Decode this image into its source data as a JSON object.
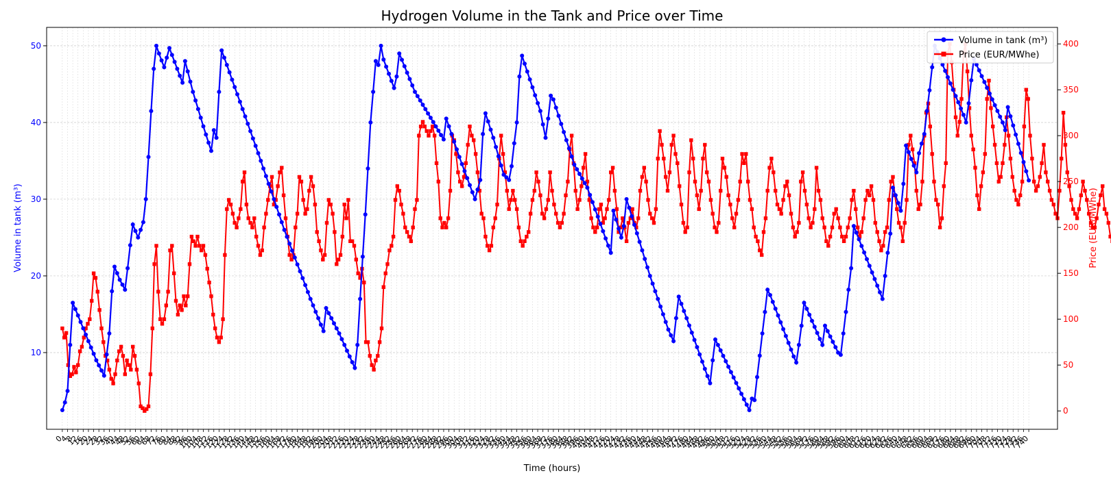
{
  "chart_data": {
    "type": "line",
    "title": "Hydrogen Volume in the Tank and Price over Time",
    "xlabel": "Time (hours)",
    "ylabel_left": "Volume in tank (m³)",
    "ylabel_right": "Price (EUR/MWhe)",
    "x_tick_step": 4,
    "xlim": [
      -12,
      762
    ],
    "ylim_left": [
      0.0,
      52.4
    ],
    "ylim_right": [
      -20,
      418
    ],
    "yticks_left": [
      10,
      20,
      30,
      40,
      50
    ],
    "yticks_right": [
      0,
      50,
      100,
      150,
      200,
      250,
      300,
      350,
      400
    ],
    "grid": true,
    "legend_position": "top-right",
    "series": [
      {
        "name": "Volume in tank (m³)",
        "axis": "left",
        "color": "#0000ff",
        "marker": "circle",
        "points": [
          [
            0,
            2.5
          ],
          [
            2,
            3.5
          ],
          [
            4,
            5
          ],
          [
            6,
            11
          ],
          [
            8,
            16.5
          ],
          [
            14,
            14
          ],
          [
            20,
            11.5
          ],
          [
            26,
            9
          ],
          [
            32,
            7
          ],
          [
            36,
            12.5
          ],
          [
            38,
            18
          ],
          [
            40,
            21.2
          ],
          [
            44,
            19.5
          ],
          [
            48,
            18.2
          ],
          [
            50,
            21
          ],
          [
            52,
            24
          ],
          [
            54,
            26.7
          ],
          [
            58,
            25
          ],
          [
            62,
            27
          ],
          [
            64,
            30
          ],
          [
            66,
            35.5
          ],
          [
            68,
            41.5
          ],
          [
            70,
            47
          ],
          [
            72,
            50
          ],
          [
            74,
            49
          ],
          [
            78,
            47.2
          ],
          [
            82,
            49.7
          ],
          [
            88,
            47
          ],
          [
            92,
            45.2
          ],
          [
            94,
            48
          ],
          [
            100,
            44
          ],
          [
            108,
            39.5
          ],
          [
            114,
            36.3
          ],
          [
            116,
            39
          ],
          [
            118,
            38
          ],
          [
            120,
            44
          ],
          [
            122,
            49.4
          ],
          [
            126,
            47.5
          ],
          [
            150,
            36
          ],
          [
            170,
            26
          ],
          [
            190,
            17
          ],
          [
            200,
            12.8
          ],
          [
            202,
            15.8
          ],
          [
            212,
            12.5
          ],
          [
            224,
            8
          ],
          [
            226,
            11
          ],
          [
            228,
            17
          ],
          [
            230,
            22.5
          ],
          [
            232,
            28
          ],
          [
            234,
            34
          ],
          [
            236,
            40
          ],
          [
            238,
            44
          ],
          [
            240,
            48
          ],
          [
            242,
            47.5
          ],
          [
            244,
            50
          ],
          [
            246,
            48.2
          ],
          [
            254,
            44.5
          ],
          [
            256,
            46
          ],
          [
            258,
            49
          ],
          [
            270,
            44
          ],
          [
            292,
            37.8
          ],
          [
            294,
            40.5
          ],
          [
            304,
            35.5
          ],
          [
            316,
            30
          ],
          [
            320,
            32.5
          ],
          [
            322,
            38.5
          ],
          [
            324,
            41.2
          ],
          [
            330,
            38
          ],
          [
            338,
            33.2
          ],
          [
            342,
            32.5
          ],
          [
            344,
            34.3
          ],
          [
            346,
            37.3
          ],
          [
            348,
            40
          ],
          [
            350,
            46
          ],
          [
            352,
            48.7
          ],
          [
            366,
            41.5
          ],
          [
            370,
            38
          ],
          [
            372,
            40.5
          ],
          [
            374,
            43.5
          ],
          [
            376,
            43
          ],
          [
            392,
            34.5
          ],
          [
            402,
            31.5
          ],
          [
            420,
            23
          ],
          [
            422,
            28.5
          ],
          [
            428,
            25
          ],
          [
            430,
            26.5
          ],
          [
            432,
            30
          ],
          [
            450,
            20
          ],
          [
            464,
            13
          ],
          [
            468,
            11.5
          ],
          [
            470,
            14.5
          ],
          [
            472,
            17.3
          ],
          [
            496,
            6
          ],
          [
            498,
            9
          ],
          [
            500,
            11.7
          ],
          [
            526,
            2.5
          ],
          [
            528,
            4
          ],
          [
            530,
            3.8
          ],
          [
            532,
            6.8
          ],
          [
            534,
            9.6
          ],
          [
            536,
            12.5
          ],
          [
            538,
            15.3
          ],
          [
            540,
            18.2
          ],
          [
            542,
            17.5
          ],
          [
            560,
            9.5
          ],
          [
            562,
            8.7
          ],
          [
            564,
            11
          ],
          [
            566,
            13.5
          ],
          [
            568,
            16.5
          ],
          [
            582,
            11
          ],
          [
            584,
            13.5
          ],
          [
            594,
            10
          ],
          [
            596,
            9.7
          ],
          [
            598,
            12.5
          ],
          [
            600,
            15.3
          ],
          [
            602,
            18.2
          ],
          [
            604,
            21
          ],
          [
            606,
            26.5
          ],
          [
            628,
            17
          ],
          [
            630,
            20
          ],
          [
            632,
            23
          ],
          [
            634,
            25.5
          ],
          [
            636,
            31.5
          ],
          [
            642,
            28.5
          ],
          [
            644,
            32
          ],
          [
            646,
            37
          ],
          [
            654,
            33.5
          ],
          [
            656,
            36
          ],
          [
            660,
            38.5
          ],
          [
            662,
            41.5
          ],
          [
            664,
            44.2
          ],
          [
            666,
            47.2
          ],
          [
            668,
            50
          ],
          [
            690,
            41
          ],
          [
            692,
            40
          ],
          [
            694,
            42.5
          ],
          [
            696,
            45.5
          ],
          [
            698,
            48.3
          ],
          [
            720,
            40
          ],
          [
            722,
            39
          ],
          [
            724,
            42
          ],
          [
            786,
            5
          ]
        ]
      },
      {
        "name": "Price (EUR/MWhe)",
        "axis": "right",
        "color": "#ff0000",
        "marker": "square",
        "values": [
          90,
          80,
          85,
          50,
          38,
          40,
          48,
          42,
          50,
          65,
          70,
          80,
          90,
          95,
          100,
          120,
          150,
          145,
          130,
          110,
          90,
          75,
          60,
          55,
          45,
          35,
          30,
          40,
          55,
          65,
          70,
          60,
          40,
          55,
          50,
          45,
          70,
          60,
          45,
          30,
          5,
          3,
          0,
          2,
          5,
          40,
          90,
          160,
          180,
          130,
          100,
          95,
          100,
          115,
          130,
          175,
          180,
          150,
          120,
          105,
          115,
          110,
          125,
          115,
          125,
          160,
          190,
          185,
          180,
          190,
          180,
          175,
          180,
          170,
          155,
          140,
          125,
          105,
          90,
          80,
          75,
          80,
          100,
          170,
          220,
          230,
          225,
          215,
          205,
          200,
          210,
          220,
          250,
          260,
          225,
          210,
          205,
          200,
          210,
          190,
          180,
          170,
          175,
          200,
          215,
          230,
          245,
          255,
          225,
          230,
          245,
          260,
          265,
          235,
          210,
          190,
          170,
          165,
          170,
          200,
          215,
          255,
          250,
          230,
          215,
          220,
          240,
          255,
          245,
          225,
          195,
          185,
          175,
          165,
          170,
          205,
          230,
          225,
          215,
          195,
          160,
          165,
          170,
          190,
          225,
          210,
          230,
          185,
          185,
          180,
          165,
          150,
          145,
          155,
          140,
          75,
          75,
          60,
          50,
          45,
          55,
          60,
          75,
          90,
          135,
          150,
          160,
          175,
          180,
          190,
          230,
          245,
          240,
          225,
          215,
          200,
          195,
          190,
          185,
          200,
          220,
          230,
          300,
          310,
          315,
          310,
          305,
          300,
          305,
          310,
          300,
          270,
          250,
          210,
          200,
          205,
          200,
          210,
          240,
          300,
          295,
          280,
          260,
          250,
          245,
          255,
          270,
          290,
          310,
          300,
          295,
          280,
          260,
          240,
          215,
          210,
          190,
          180,
          175,
          180,
          200,
          210,
          225,
          275,
          300,
          280,
          260,
          240,
          220,
          230,
          240,
          230,
          220,
          200,
          185,
          180,
          185,
          190,
          195,
          215,
          230,
          240,
          260,
          250,
          235,
          215,
          210,
          220,
          230,
          260,
          240,
          225,
          215,
          205,
          200,
          205,
          215,
          235,
          250,
          285,
          300,
          270,
          240,
          220,
          230,
          245,
          265,
          280,
          250,
          230,
          210,
          200,
          195,
          200,
          220,
          225,
          205,
          210,
          220,
          230,
          260,
          265,
          240,
          220,
          195,
          200,
          210,
          200,
          185,
          205,
          210,
          220,
          205,
          200,
          210,
          240,
          255,
          265,
          250,
          230,
          215,
          210,
          205,
          220,
          275,
          305,
          290,
          275,
          255,
          240,
          260,
          290,
          300,
          280,
          270,
          245,
          225,
          205,
          195,
          200,
          260,
          295,
          275,
          250,
          235,
          220,
          240,
          275,
          290,
          260,
          250,
          230,
          215,
          200,
          195,
          205,
          240,
          275,
          265,
          255,
          235,
          225,
          210,
          200,
          215,
          230,
          250,
          280,
          270,
          280,
          250,
          230,
          220,
          200,
          190,
          185,
          175,
          170,
          195,
          210,
          240,
          265,
          275,
          260,
          240,
          225,
          220,
          215,
          230,
          245,
          250,
          235,
          215,
          200,
          190,
          195,
          205,
          250,
          260,
          240,
          225,
          210,
          200,
          205,
          220,
          265,
          240,
          230,
          210,
          200,
          185,
          180,
          190,
          200,
          215,
          220,
          210,
          200,
          190,
          185,
          190,
          200,
          210,
          230,
          240,
          220,
          200,
          190,
          195,
          210,
          230,
          240,
          235,
          245,
          230,
          205,
          195,
          185,
          175,
          180,
          195,
          200,
          230,
          250,
          255,
          235,
          220,
          205,
          200,
          185,
          205,
          230,
          290,
          300,
          285,
          270,
          240,
          220,
          225,
          250,
          300,
          325,
          335,
          310,
          280,
          250,
          230,
          225,
          200,
          210,
          245,
          270,
          390,
          400,
          380,
          350,
          320,
          300,
          315,
          340,
          390,
          400,
          370,
          330,
          300,
          285,
          265,
          235,
          220,
          245,
          260,
          280,
          340,
          360,
          330,
          310,
          290,
          270,
          250,
          255,
          270,
          290,
          320,
          300,
          275,
          255,
          240,
          230,
          225,
          235,
          250,
          310,
          350,
          340,
          300,
          275,
          250,
          240,
          245,
          255,
          270,
          290,
          260,
          250,
          240,
          230,
          225,
          215,
          210,
          240,
          275,
          325,
          290,
          260,
          245,
          230,
          220,
          215,
          210,
          220,
          235,
          250,
          240,
          230,
          215,
          205,
          200,
          200,
          210,
          225,
          235,
          245,
          220,
          215,
          205,
          190,
          185,
          195,
          210,
          240,
          260,
          250,
          230,
          215,
          210,
          200,
          205,
          210,
          220,
          225,
          215,
          220,
          230,
          235,
          240,
          225,
          215,
          210,
          220,
          240,
          260,
          265,
          240,
          220,
          210,
          200,
          195,
          170,
          140,
          100,
          130,
          180,
          230,
          245,
          240,
          225,
          205,
          190,
          195,
          215,
          235,
          250,
          245,
          230,
          210,
          200
        ]
      }
    ]
  }
}
